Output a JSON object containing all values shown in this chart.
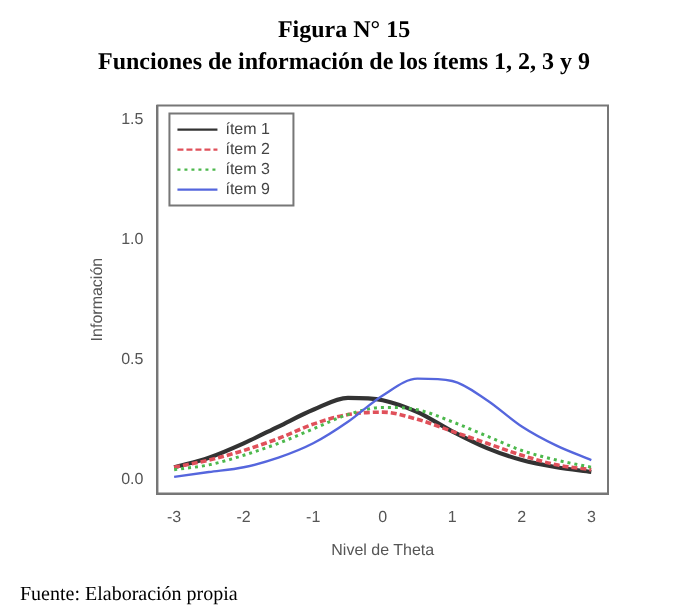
{
  "chart_data": {
    "type": "line",
    "title": "Figura N° 15",
    "subtitle": "Funciones de información de los ítems 1, 2, 3 y 9",
    "xlabel": "Nivel de Theta",
    "ylabel": "Información",
    "x": [
      -3,
      -2.5,
      -2,
      -1.5,
      -1,
      -0.5,
      0,
      0.5,
      1,
      1.5,
      2,
      2.5,
      3
    ],
    "series": [
      {
        "name": "ítem 1",
        "color": "#333333",
        "line_style": "solid",
        "values": [
          0.05,
          0.09,
          0.15,
          0.22,
          0.29,
          0.34,
          0.33,
          0.28,
          0.2,
          0.13,
          0.08,
          0.05,
          0.03
        ]
      },
      {
        "name": "ítem 2",
        "color": "#e0505a",
        "line_style": "dashed",
        "values": [
          0.05,
          0.08,
          0.12,
          0.17,
          0.23,
          0.27,
          0.28,
          0.25,
          0.2,
          0.15,
          0.1,
          0.06,
          0.04
        ]
      },
      {
        "name": "ítem 3",
        "color": "#4cb84c",
        "line_style": "dotted",
        "values": [
          0.04,
          0.06,
          0.1,
          0.15,
          0.21,
          0.27,
          0.3,
          0.29,
          0.24,
          0.18,
          0.12,
          0.08,
          0.05
        ]
      },
      {
        "name": "ítem 9",
        "color": "#5566dd",
        "line_style": "solid",
        "values": [
          0.01,
          0.03,
          0.05,
          0.09,
          0.15,
          0.24,
          0.35,
          0.42,
          0.41,
          0.33,
          0.22,
          0.14,
          0.08
        ]
      }
    ],
    "xlim": [
      -3.24,
      3.24
    ],
    "ylim": [
      -0.06,
      1.56
    ],
    "xticks": [
      -3,
      -2,
      -1,
      0,
      1,
      2,
      3
    ],
    "yticks": [
      {
        "value": 0,
        "label": "0.0"
      },
      {
        "value": 0.5,
        "label": "0.5"
      },
      {
        "value": 1,
        "label": "1.0"
      },
      {
        "value": 1.5,
        "label": "1.5"
      }
    ],
    "legend": "top left",
    "grid": false,
    "marker": "none",
    "annotations": [
      "Fuente: Elaboración propia"
    ]
  }
}
